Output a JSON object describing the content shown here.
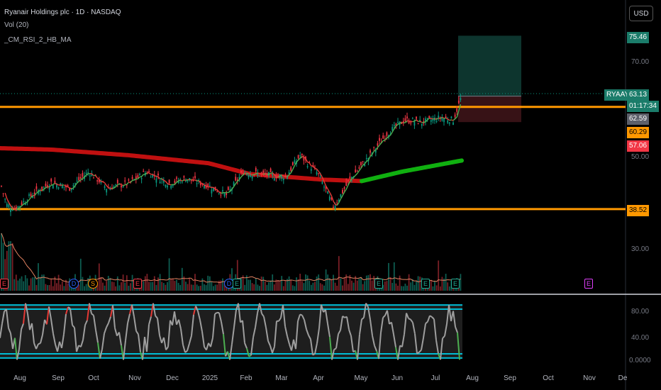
{
  "header": {
    "title": "Ryanair Holdings plc · 1D · NASDAQ",
    "indicator_volume": "Vol (20)",
    "indicator_ma": "_CM_RSI_2_HB_MA"
  },
  "currency_button": "USD",
  "price_axis": {
    "ticks": [
      "70.00",
      "50.00",
      "30.00"
    ],
    "badges": {
      "tp": "75.46",
      "symbol": "RYAAY",
      "price": "63.13",
      "countdown": "01:17:34",
      "level1": "62.59",
      "level2": "60.29",
      "stop": "57.06",
      "support": "38.52"
    }
  },
  "rsi_axis": {
    "ticks": [
      "80.00",
      "40.00",
      "0.0000"
    ]
  },
  "time_axis": [
    "Aug",
    "Sep",
    "Oct",
    "Nov",
    "Dec",
    "2025",
    "Feb",
    "Mar",
    "Apr",
    "May",
    "Jun",
    "Jul",
    "Aug",
    "Sep",
    "Oct",
    "Nov",
    "De"
  ],
  "events": [
    {
      "label": "E",
      "color": "#f23645",
      "shape": "square"
    },
    {
      "label": "D",
      "color": "#2962ff",
      "shape": "circle"
    },
    {
      "label": "S",
      "color": "#ff9800",
      "shape": "circle"
    },
    {
      "label": "E",
      "color": "#f23645",
      "shape": "square"
    },
    {
      "label": "D",
      "color": "#2962ff",
      "shape": "circle"
    },
    {
      "label": "E",
      "color": "#22ab94",
      "shape": "square"
    },
    {
      "label": "E",
      "color": "#22ab94",
      "shape": "square"
    },
    {
      "label": "E",
      "color": "#22ab94",
      "shape": "square"
    },
    {
      "label": "E",
      "color": "#22ab94",
      "shape": "square"
    },
    {
      "label": "E",
      "color": "#e040fb",
      "shape": "square"
    }
  ],
  "colors": {
    "up": "#089981",
    "down": "#f23645",
    "level_line": "#ff9800",
    "ma_down": "#c01010",
    "ma_up": "#10b010",
    "rsi_band": "#00bcd4",
    "rsi_line": "#9e9e9e"
  },
  "chart_data": {
    "type": "candlestick",
    "symbol": "RYAAY",
    "timeframe": "1D",
    "y_range": [
      24,
      80
    ],
    "horizontal_levels": [
      60.29,
      38.52
    ],
    "position": {
      "target": 75.46,
      "entry": 62.59,
      "stop": 57.06
    },
    "last_price": 63.13,
    "close_series": [
      {
        "date": "2024-07-24",
        "close": 44.5
      },
      {
        "date": "2024-07-29",
        "close": 39.5
      },
      {
        "date": "2024-08-05",
        "close": 38.6
      },
      {
        "date": "2024-08-19",
        "close": 41.8
      },
      {
        "date": "2024-09-02",
        "close": 44.2
      },
      {
        "date": "2024-09-16",
        "close": 43.0
      },
      {
        "date": "2024-10-01",
        "close": 46.5
      },
      {
        "date": "2024-10-15",
        "close": 43.0
      },
      {
        "date": "2024-11-01",
        "close": 44.0
      },
      {
        "date": "2024-11-15",
        "close": 46.5
      },
      {
        "date": "2024-12-02",
        "close": 44.0
      },
      {
        "date": "2024-12-16",
        "close": 45.0
      },
      {
        "date": "2025-01-02",
        "close": 43.5
      },
      {
        "date": "2025-01-16",
        "close": 41.5
      },
      {
        "date": "2025-01-29",
        "close": 46.5
      },
      {
        "date": "2025-02-14",
        "close": 45.8
      },
      {
        "date": "2025-03-03",
        "close": 45.5
      },
      {
        "date": "2025-03-14",
        "close": 50.0
      },
      {
        "date": "2025-03-28",
        "close": 46.0
      },
      {
        "date": "2025-04-09",
        "close": 39.0
      },
      {
        "date": "2025-04-22",
        "close": 45.0
      },
      {
        "date": "2025-05-06",
        "close": 49.5
      },
      {
        "date": "2025-05-20",
        "close": 54.5
      },
      {
        "date": "2025-06-03",
        "close": 57.5
      },
      {
        "date": "2025-06-17",
        "close": 57.0
      },
      {
        "date": "2025-07-01",
        "close": 58.0
      },
      {
        "date": "2025-07-11",
        "close": 57.5
      },
      {
        "date": "2025-07-18",
        "close": 63.13
      }
    ],
    "moving_average": [
      {
        "date": "2024-07-24",
        "value": 51.5
      },
      {
        "date": "2024-09-02",
        "value": 51.2
      },
      {
        "date": "2024-11-01",
        "value": 50.0
      },
      {
        "date": "2025-01-02",
        "value": 48.3
      },
      {
        "date": "2025-02-03",
        "value": 46.0
      },
      {
        "date": "2025-03-03",
        "value": 45.4
      },
      {
        "date": "2025-04-01",
        "value": 44.8
      },
      {
        "date": "2025-05-01",
        "value": 44.5
      },
      {
        "date": "2025-06-01",
        "value": 46.5
      },
      {
        "date": "2025-07-18",
        "value": 48.9
      }
    ]
  }
}
